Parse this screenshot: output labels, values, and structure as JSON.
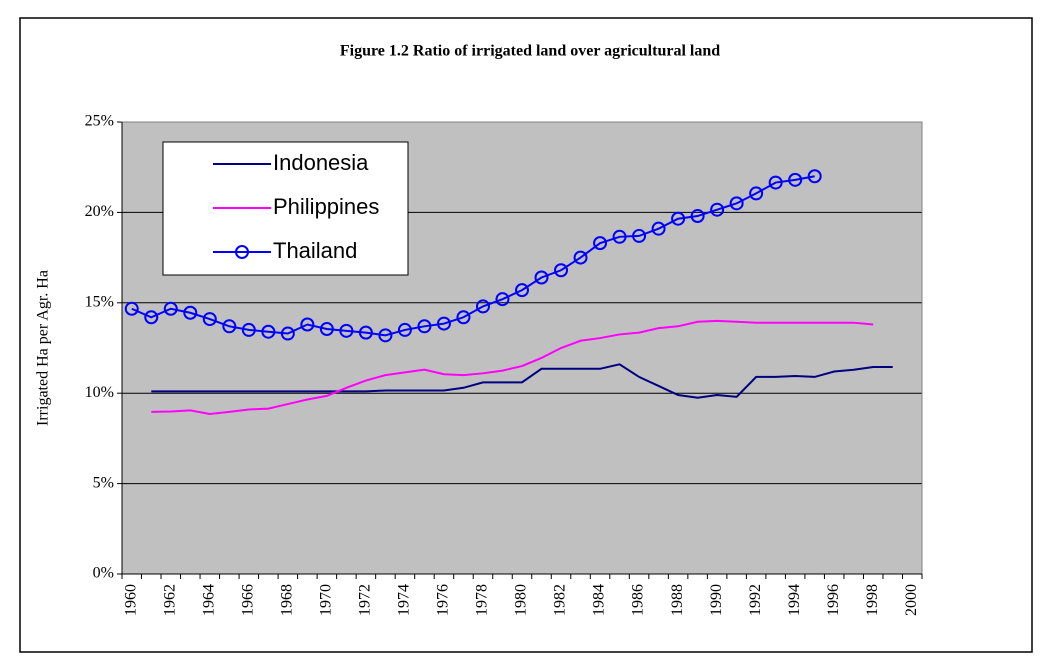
{
  "chart_data": {
    "type": "line",
    "title": "Figure 1.2 Ratio of irrigated land over agricultural land",
    "y_label": "Irrigated Ha per Agr. Ha",
    "categories": [
      "1960",
      null,
      "1962",
      null,
      "1964",
      null,
      "1966",
      null,
      "1968",
      null,
      "1970",
      null,
      "1972",
      null,
      "1974",
      null,
      "1976",
      null,
      "1978",
      null,
      "1980",
      null,
      "1982",
      null,
      "1984",
      null,
      "1986",
      null,
      "1988",
      null,
      "1990",
      null,
      "1992",
      null,
      "1994",
      null,
      "1996",
      null,
      "1998",
      null,
      "2000"
    ],
    "series": [
      {
        "name": "Indonesia",
        "color": "#000080",
        "marker": false,
        "values": [
          null,
          10.1,
          10.1,
          10.1,
          10.1,
          10.1,
          10.1,
          10.1,
          10.1,
          10.1,
          10.1,
          10.1,
          10.1,
          10.15,
          10.15,
          10.15,
          10.15,
          10.3,
          10.6,
          10.6,
          10.6,
          11.35,
          11.35,
          11.35,
          11.35,
          11.6,
          10.9,
          10.4,
          9.9,
          9.75,
          9.9,
          9.8,
          10.9,
          10.9,
          10.95,
          10.9,
          11.2,
          11.3,
          11.45,
          11.45,
          null
        ]
      },
      {
        "name": "Philippines",
        "color": "#ff00ff",
        "marker": false,
        "values": [
          null,
          8.97,
          8.99,
          9.05,
          8.85,
          8.97,
          9.1,
          9.15,
          9.4,
          9.65,
          9.85,
          10.3,
          10.7,
          11.0,
          11.15,
          11.3,
          11.05,
          11.0,
          11.1,
          11.25,
          11.5,
          11.95,
          12.5,
          12.9,
          13.05,
          13.25,
          13.35,
          13.6,
          13.7,
          13.95,
          14.0,
          13.95,
          13.9,
          13.9,
          13.9,
          13.9,
          13.9,
          13.9,
          13.8,
          null,
          null
        ]
      },
      {
        "name": "Thailand",
        "color": "#0000ff",
        "marker": true,
        "values": [
          14.67,
          14.2,
          14.67,
          14.45,
          14.1,
          13.7,
          13.5,
          13.4,
          13.3,
          13.8,
          13.55,
          13.45,
          13.35,
          13.2,
          13.5,
          13.7,
          13.85,
          14.2,
          14.8,
          15.2,
          15.7,
          16.4,
          16.8,
          17.5,
          18.3,
          18.65,
          18.7,
          19.1,
          19.65,
          19.8,
          20.15,
          20.5,
          21.05,
          21.65,
          21.8,
          22.0,
          null,
          null,
          null,
          null,
          null
        ]
      }
    ],
    "ylim": [
      0,
      25
    ],
    "yticks": [
      {
        "value": 0,
        "label": "0%"
      },
      {
        "value": 5,
        "label": "5%"
      },
      {
        "value": 10,
        "label": "10%"
      },
      {
        "value": 15,
        "label": "15%"
      },
      {
        "value": 20,
        "label": "20%"
      },
      {
        "value": 25,
        "label": "25%"
      }
    ],
    "grid": true,
    "legend": "upper-left",
    "background": "#c0c0c0"
  }
}
